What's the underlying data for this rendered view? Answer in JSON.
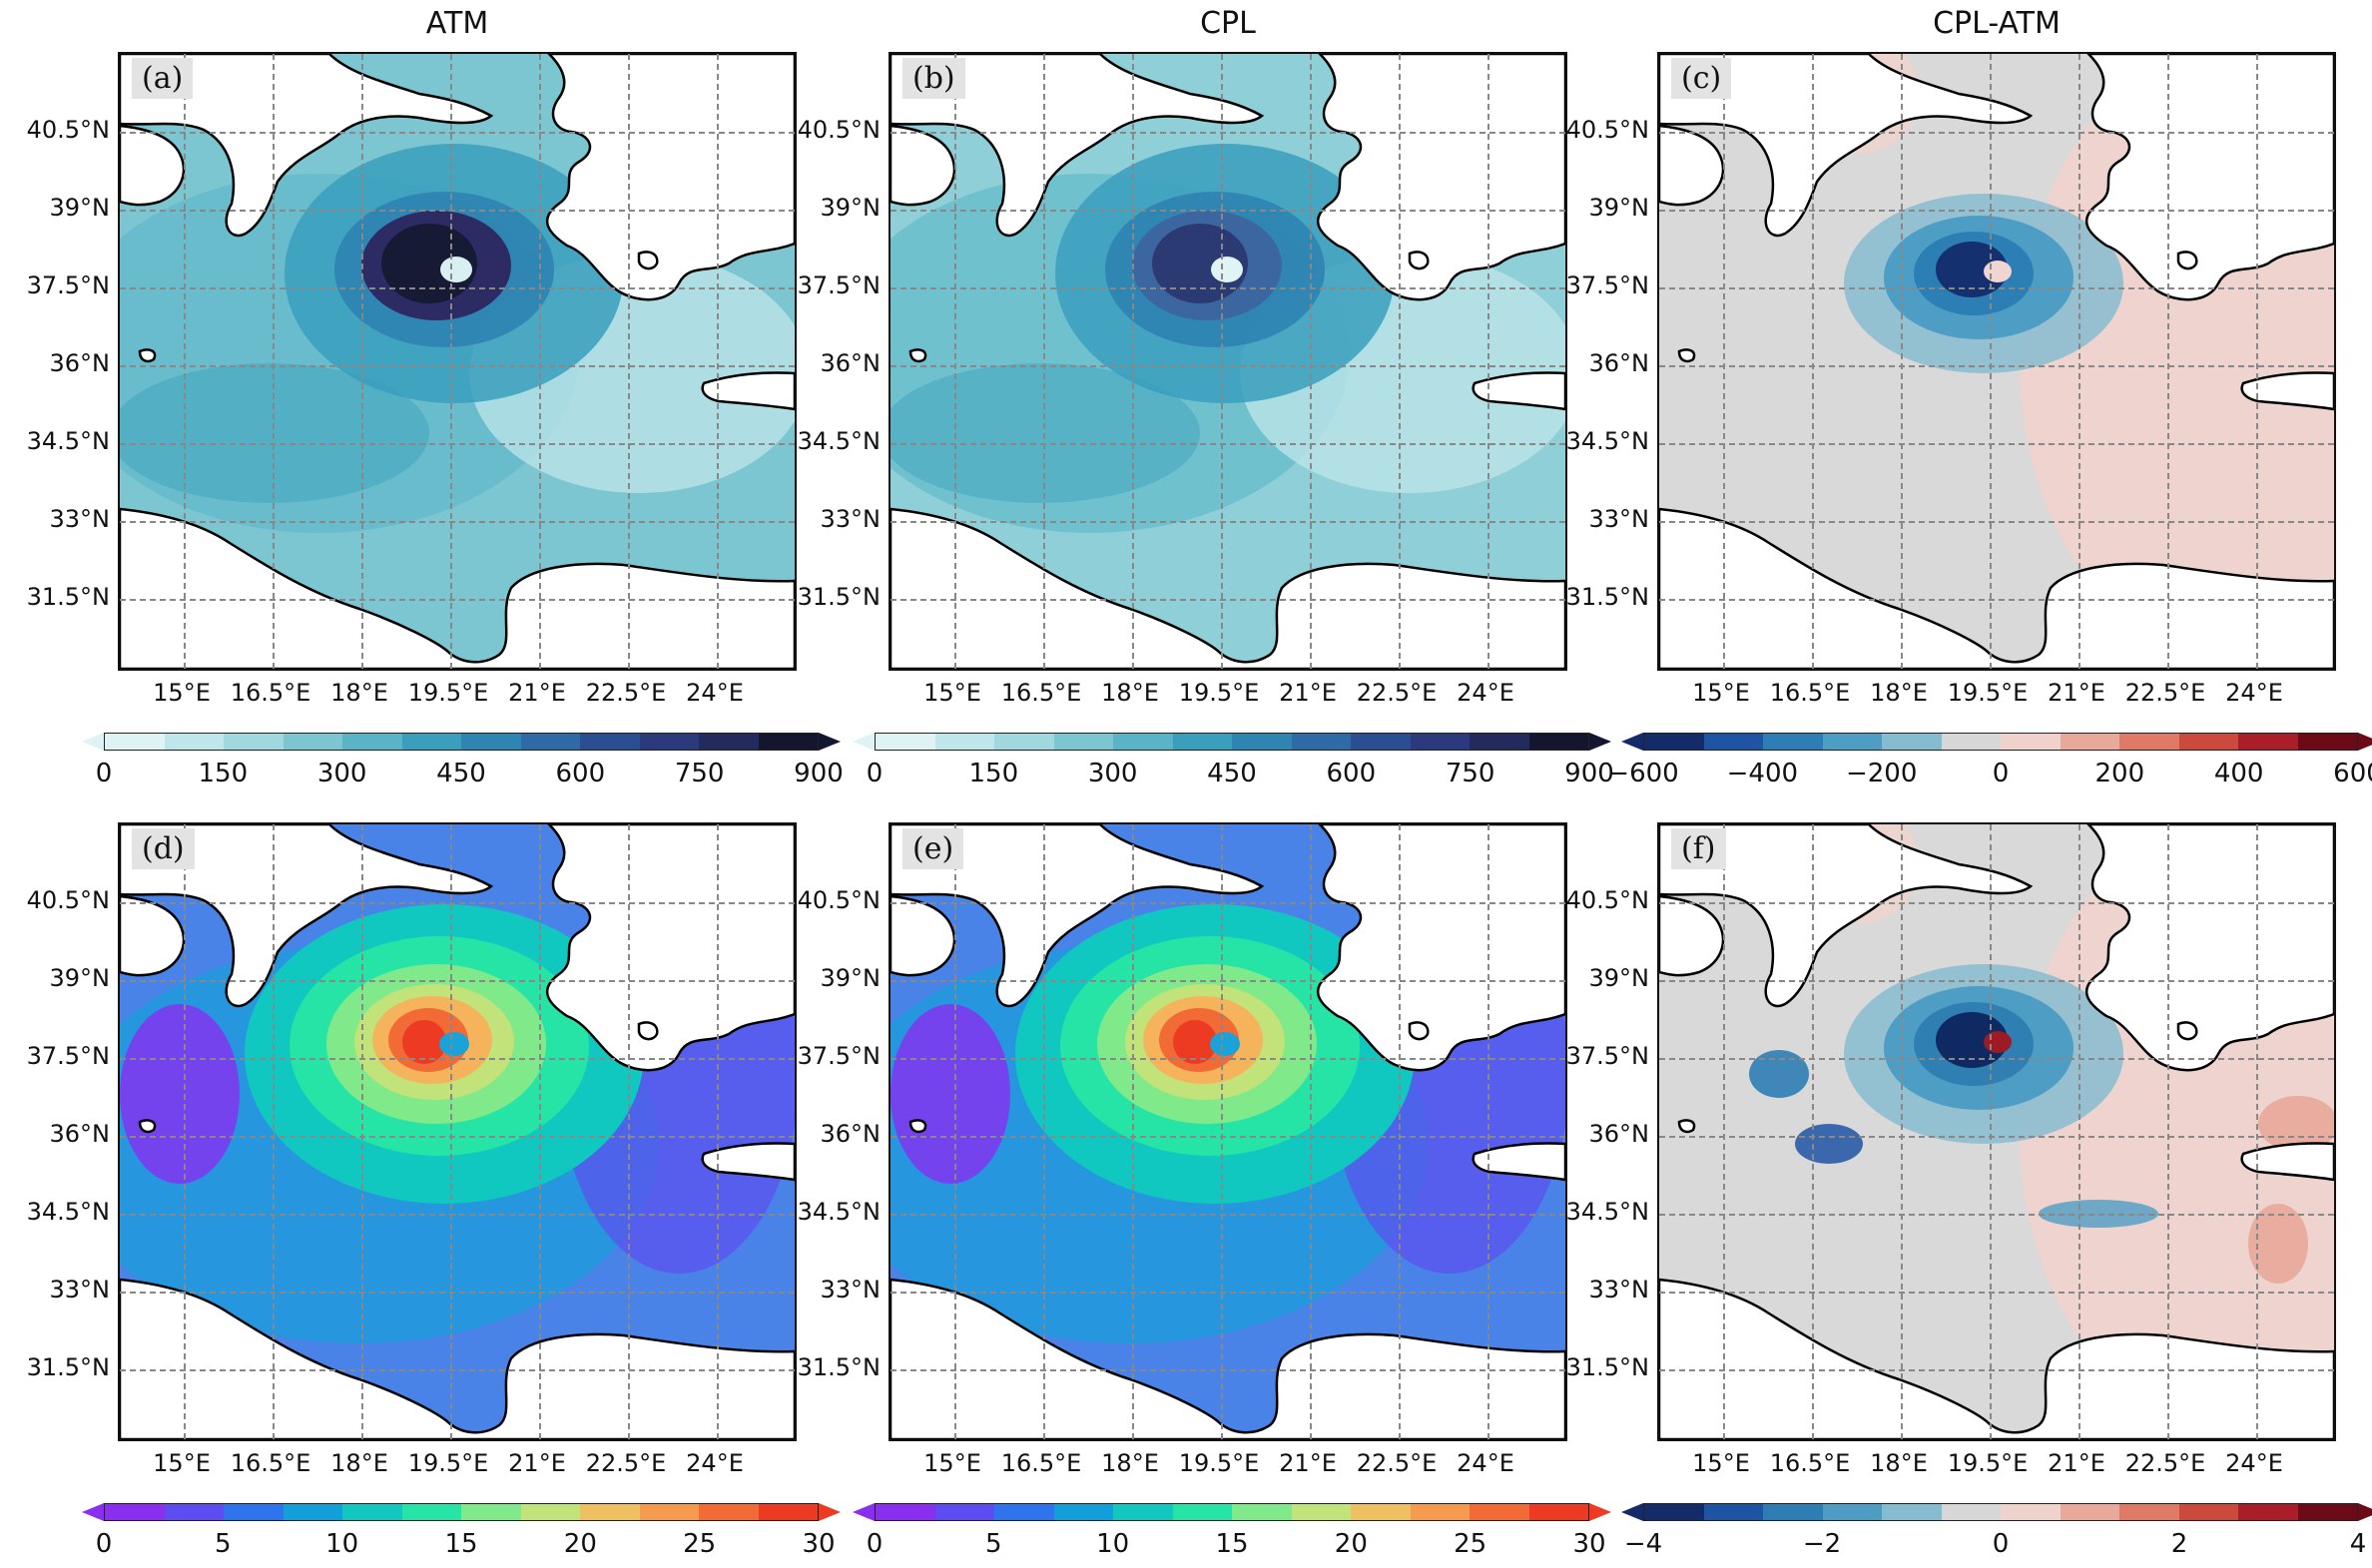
{
  "columns": [
    "ATM",
    "CPL",
    "CPL-ATM"
  ],
  "panels": [
    {
      "id": "a",
      "label": "(a)",
      "palette": "blue",
      "core": "#161a34",
      "core2": "#2d2b63",
      "eye": "#d8f0f2",
      "bg": "#7cc6d1"
    },
    {
      "id": "b",
      "label": "(b)",
      "palette": "blue",
      "core": "#2b3a73",
      "core2": "#3c66a0",
      "eye": "#e1f4f5",
      "bg": "#8fd0d8"
    },
    {
      "id": "c",
      "label": "(c)",
      "palette": "diff",
      "core": "#14306e",
      "core2": "#2b7fb4",
      "eye": "#f0d5d0",
      "bg": "#d9d9d9"
    },
    {
      "id": "d",
      "label": "(d)",
      "palette": "rainbow",
      "core": "#ec3a23",
      "core2": "#f5b45c",
      "eye": "#19a3d8",
      "bg": "#4a83e8"
    },
    {
      "id": "e",
      "label": "(e)",
      "palette": "rainbow",
      "core": "#ec3a23",
      "core2": "#f5b45c",
      "eye": "#19a3d8",
      "bg": "#4a83e8"
    },
    {
      "id": "f",
      "label": "(f)",
      "palette": "diff",
      "core": "#0f2a62",
      "core2": "#2f7fb3",
      "eye": "#9c1b24",
      "bg": "#d9d9d9"
    }
  ],
  "lat_labels": [
    "40.5°N",
    "39°N",
    "37.5°N",
    "36°N",
    "34.5°N",
    "33°N",
    "31.5°N"
  ],
  "lon_labels": [
    "15°E",
    "16.5°E",
    "18°E",
    "19.5°E",
    "21°E",
    "22.5°E",
    "24°E"
  ],
  "colorbars": [
    {
      "id": "cb-a",
      "ticks": [
        "0",
        "150",
        "300",
        "450",
        "600",
        "750",
        "900"
      ],
      "colors": [
        "#dff3f4",
        "#bfe6ea",
        "#9fd8df",
        "#7cc6d1",
        "#58b4c6",
        "#3a9fbd",
        "#2f85b2",
        "#2d6aa6",
        "#2b4e92",
        "#2a3a7c",
        "#232a5e",
        "#141630"
      ]
    },
    {
      "id": "cb-b",
      "ticks": [
        "0",
        "150",
        "300",
        "450",
        "600",
        "750",
        "900"
      ],
      "colors": [
        "#dff3f4",
        "#bfe6ea",
        "#9fd8df",
        "#7cc6d1",
        "#58b4c6",
        "#3a9fbd",
        "#2f85b2",
        "#2d6aa6",
        "#2b4e92",
        "#2a3a7c",
        "#232a5e",
        "#141630"
      ]
    },
    {
      "id": "cb-c",
      "ticks": [
        "−600",
        "−400",
        "−200",
        "0",
        "200",
        "400",
        "600"
      ],
      "colors": [
        "#132b69",
        "#1e54a3",
        "#2f7db5",
        "#4e9dc4",
        "#86bcd0",
        "#d7d7d7",
        "#f0d2cc",
        "#e8a99a",
        "#df7a67",
        "#cc4a3c",
        "#a91e28",
        "#6d0a17"
      ]
    },
    {
      "id": "cb-d",
      "ticks": [
        "0",
        "5",
        "10",
        "15",
        "20",
        "25",
        "30"
      ],
      "colors": [
        "#8a2ef0",
        "#5d4df0",
        "#2f74ec",
        "#139fd9",
        "#10c8c0",
        "#25e4a6",
        "#80ea8a",
        "#c2e27a",
        "#efc060",
        "#f59a4e",
        "#f26a36",
        "#ec3a23"
      ]
    },
    {
      "id": "cb-e",
      "ticks": [
        "0",
        "5",
        "10",
        "15",
        "20",
        "25",
        "30"
      ],
      "colors": [
        "#8a2ef0",
        "#5d4df0",
        "#2f74ec",
        "#139fd9",
        "#10c8c0",
        "#25e4a6",
        "#80ea8a",
        "#c2e27a",
        "#efc060",
        "#f59a4e",
        "#f26a36",
        "#ec3a23"
      ]
    },
    {
      "id": "cb-f",
      "ticks": [
        "−4",
        "−2",
        "0",
        "2",
        "4"
      ],
      "colors": [
        "#132b69",
        "#1e54a3",
        "#2f7db5",
        "#4e9dc4",
        "#86bcd0",
        "#d7d7d7",
        "#f0d2cc",
        "#e8a99a",
        "#df7a67",
        "#cc4a3c",
        "#a91e28",
        "#6d0a17"
      ]
    }
  ]
}
